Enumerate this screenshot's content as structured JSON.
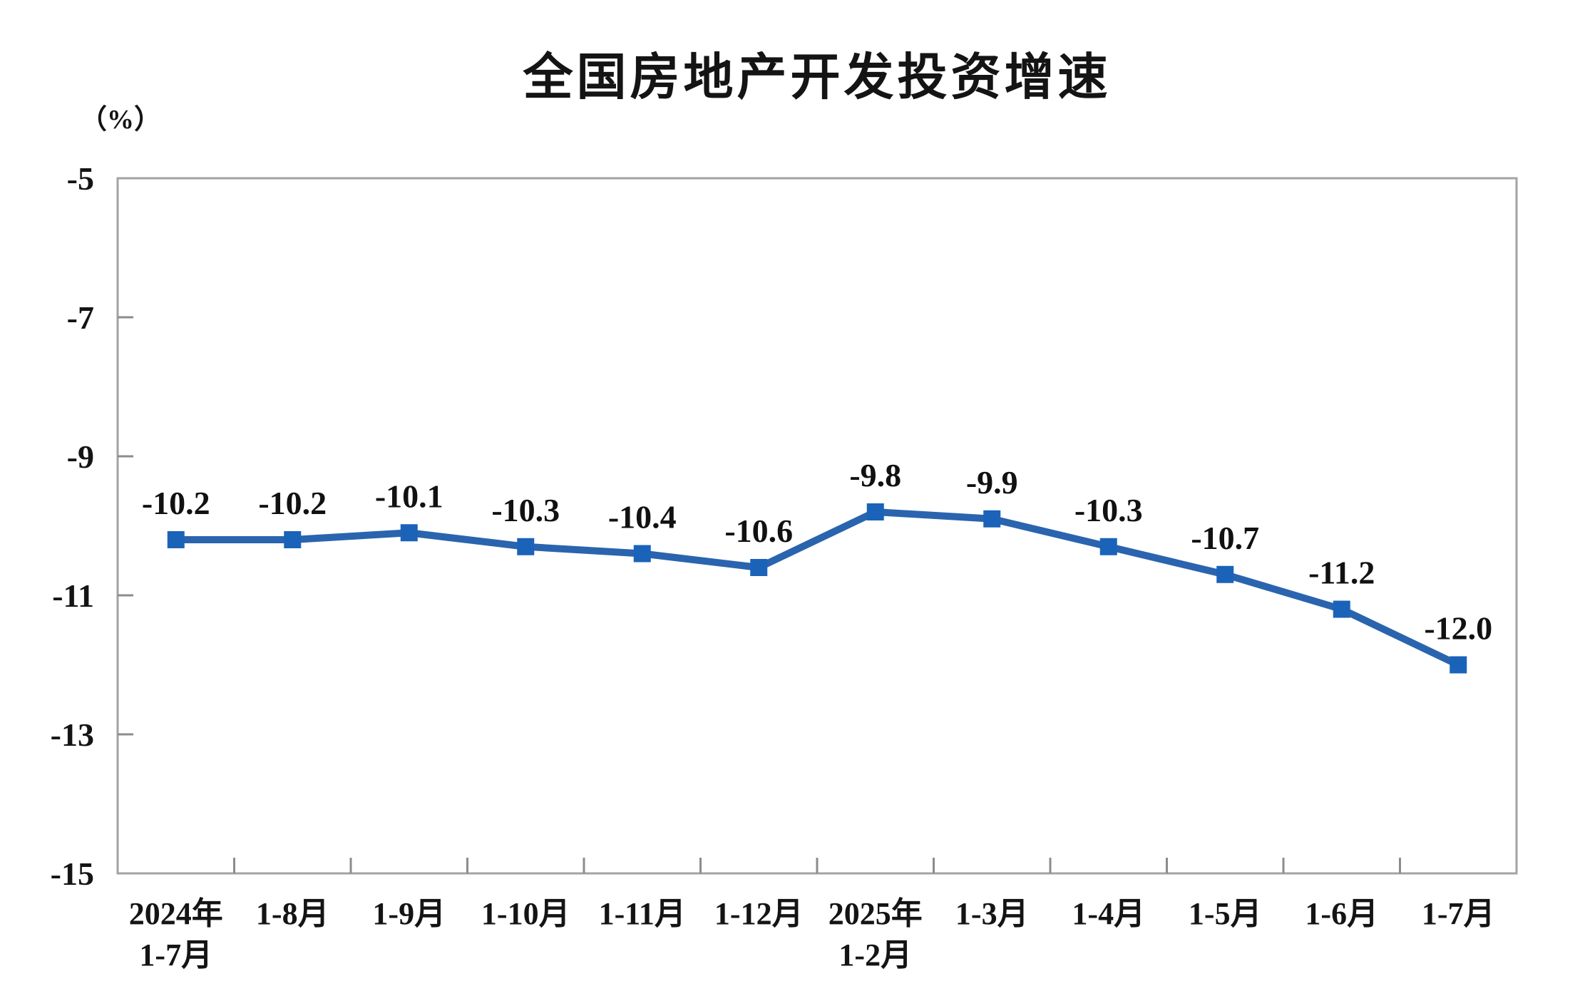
{
  "chart_data": {
    "type": "line",
    "title": "全国房地产开发投资增速",
    "ylabel": "（%）",
    "xlabel": "",
    "categories": [
      "2024年\n1-7月",
      "1-8月",
      "1-9月",
      "1-10月",
      "1-11月",
      "1-12月",
      "2025年\n1-2月",
      "1-3月",
      "1-4月",
      "1-5月",
      "1-6月",
      "1-7月"
    ],
    "values": [
      -10.2,
      -10.2,
      -10.1,
      -10.3,
      -10.4,
      -10.6,
      -9.8,
      -9.9,
      -10.3,
      -10.7,
      -11.2,
      -12.0
    ],
    "data_labels": [
      "-10.2",
      "-10.2",
      "-10.1",
      "-10.3",
      "-10.4",
      "-10.6",
      "-9.8",
      "-9.9",
      "-10.3",
      "-10.7",
      "-11.2",
      "-12.0"
    ],
    "ylim": [
      -15,
      -5
    ],
    "yticks": [
      -5,
      -7,
      -9,
      -11,
      -13,
      -15
    ],
    "grid": false,
    "legend": "none",
    "marker": "square",
    "colors": {
      "line": "#2a64ae",
      "marker": "#1a63b8",
      "axis_border": "#a3a3a3",
      "tick": "#8c8c8c",
      "text": "#141414"
    }
  }
}
